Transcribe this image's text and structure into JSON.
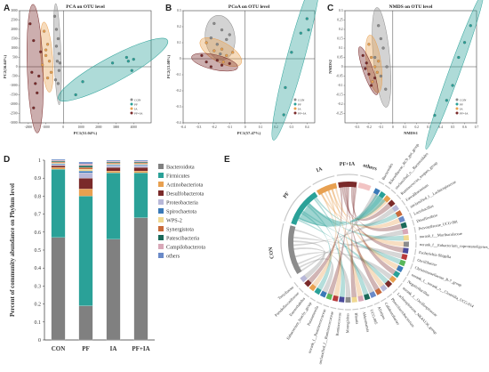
{
  "panels": {
    "a": {
      "letter": "A",
      "title": "PCA on OTU level",
      "xlabel": "PC1(51.04%)",
      "ylabel": "PC2(16.64%)"
    },
    "b": {
      "letter": "B",
      "title": "PCoA on OTU level",
      "xlabel": "PC1(57.47%)",
      "ylabel": "PC2(13.08%)"
    },
    "c": {
      "letter": "C",
      "title": "NMDS on OTU level",
      "xlabel": "NMDS1",
      "ylabel": "NMDS2"
    },
    "d": {
      "letter": "D",
      "ylabel": "Percent of community abundance on Phylum level"
    },
    "e": {
      "letter": "E"
    }
  },
  "colors": {
    "CON": "#8c8c8c",
    "PF": "#2aa198",
    "IA": "#e8a050",
    "PF+IA": "#7a2a2a"
  },
  "chart_data": [
    {
      "type": "scatter",
      "title": "PCA on OTU level",
      "xlabel": "PC1(51.04%)",
      "ylabel": "PC2(16.64%)",
      "xlim": [
        -2500,
        5000
      ],
      "ylim": [
        -3000,
        3000
      ],
      "xticks": [
        "-2000",
        "-1000",
        "0",
        "1000",
        "2000",
        "3000",
        "4000"
      ],
      "yticks": [
        "3000",
        "2500",
        "2000",
        "1500",
        "1000",
        "500",
        "0",
        "-500",
        "-1000",
        "-1500",
        "-2000",
        "-2500",
        "-3000"
      ],
      "legend": [
        "CON",
        "PF",
        "IA",
        "PF+IA"
      ],
      "series": [
        {
          "name": "CON",
          "points": [
            [
              -500,
              2700
            ],
            [
              -400,
              2000
            ],
            [
              -300,
              1500
            ],
            [
              -250,
              700
            ],
            [
              -350,
              300
            ],
            [
              -450,
              -700
            ],
            [
              -300,
              -900
            ],
            [
              -200,
              200
            ],
            [
              -400,
              1100
            ],
            [
              -250,
              -200
            ]
          ]
        },
        {
          "name": "PF",
          "points": [
            [
              2800,
              200
            ],
            [
              3600,
              500
            ],
            [
              3700,
              300
            ],
            [
              3900,
              -200
            ],
            [
              4000,
              400
            ],
            [
              1100,
              -800
            ],
            [
              700,
              -1500
            ]
          ]
        },
        {
          "name": "IA",
          "points": [
            [
              -1100,
              1900
            ],
            [
              -900,
              1200
            ],
            [
              -1000,
              600
            ],
            [
              -800,
              300
            ],
            [
              -1200,
              100
            ],
            [
              -700,
              -300
            ],
            [
              -900,
              -600
            ],
            [
              -1000,
              900
            ]
          ]
        },
        {
          "name": "PF+IA",
          "points": [
            [
              -1900,
              2300
            ],
            [
              -1700,
              1400
            ],
            [
              -1800,
              -300
            ],
            [
              -1600,
              -900
            ],
            [
              -1500,
              -1400
            ],
            [
              -1700,
              -2200
            ],
            [
              -1400,
              -500
            ],
            [
              -1300,
              800
            ]
          ]
        }
      ]
    },
    {
      "type": "scatter",
      "title": "PCoA on OTU level",
      "xlabel": "PC1(57.47%)",
      "ylabel": "PC2(13.08%)",
      "xlim": [
        -0.4,
        0.45
      ],
      "ylim": [
        -0.4,
        0.3
      ],
      "xticks": [
        "-0.4",
        "-0.3",
        "-0.2",
        "-0.1",
        "0",
        "0.1",
        "0.2",
        "0.3",
        "0.4"
      ],
      "yticks": [
        "0.3",
        "0.2",
        "0.1",
        "0",
        "-0.1",
        "-0.2",
        "-0.3",
        "-0.4"
      ],
      "legend": [
        "CON",
        "PF",
        "IA",
        "PF+IA"
      ],
      "series": [
        {
          "name": "CON",
          "points": [
            [
              -0.2,
              0.22
            ],
            [
              -0.15,
              0.18
            ],
            [
              -0.12,
              0.12
            ],
            [
              -0.18,
              0.09
            ],
            [
              -0.22,
              0.13
            ],
            [
              -0.1,
              0.15
            ],
            [
              -0.16,
              0.03
            ]
          ]
        },
        {
          "name": "PF",
          "points": [
            [
              0.4,
              0.25
            ],
            [
              0.41,
              0.18
            ],
            [
              0.36,
              0.16
            ],
            [
              0.3,
              0.04
            ],
            [
              0.26,
              -0.18
            ],
            [
              0.25,
              -0.35
            ]
          ]
        },
        {
          "name": "IA",
          "points": [
            [
              -0.25,
              0.1
            ],
            [
              -0.2,
              0.05
            ],
            [
              -0.15,
              0.06
            ],
            [
              -0.12,
              0.02
            ],
            [
              -0.08,
              0.04
            ],
            [
              -0.14,
              -0.02
            ]
          ]
        },
        {
          "name": "PF+IA",
          "points": [
            [
              -0.28,
              0.02
            ],
            [
              -0.25,
              -0.02
            ],
            [
              -0.22,
              -0.05
            ],
            [
              -0.18,
              -0.01
            ],
            [
              -0.15,
              -0.04
            ],
            [
              -0.1,
              -0.03
            ]
          ]
        }
      ]
    },
    {
      "type": "scatter",
      "title": "NMDS on OTU level",
      "xlabel": "NMDS1",
      "ylabel": "NMDS2",
      "xlim": [
        -0.4,
        0.7
      ],
      "ylim": [
        -0.3,
        0.3
      ],
      "xticks": [
        "-0.3",
        "-0.2",
        "-0.1",
        "0",
        "0.1",
        "0.2",
        "0.3",
        "0.4",
        "0.5",
        "0.6",
        "0.7"
      ],
      "yticks": [
        "0.3",
        "0.25",
        "0.2",
        "0.15",
        "0.1",
        "0.05",
        "0",
        "-0.05",
        "-0.1",
        "-0.15",
        "-0.2",
        "-0.25"
      ],
      "legend": [
        "CON",
        "PF",
        "IA",
        "PF+IA"
      ],
      "series": [
        {
          "name": "CON",
          "points": [
            [
              -0.12,
              0.22
            ],
            [
              -0.1,
              0.15
            ],
            [
              -0.08,
              0.1
            ],
            [
              -0.15,
              0.05
            ],
            [
              -0.05,
              0.0
            ],
            [
              -0.1,
              -0.05
            ],
            [
              -0.06,
              -0.12
            ]
          ]
        },
        {
          "name": "PF",
          "points": [
            [
              0.65,
              0.22
            ],
            [
              0.6,
              0.13
            ],
            [
              0.55,
              0.05
            ],
            [
              0.5,
              -0.1
            ],
            [
              0.45,
              -0.18
            ],
            [
              0.35,
              -0.26
            ]
          ]
        },
        {
          "name": "IA",
          "points": [
            [
              -0.2,
              0.12
            ],
            [
              -0.18,
              0.05
            ],
            [
              -0.15,
              0.0
            ],
            [
              -0.13,
              -0.03
            ],
            [
              -0.17,
              -0.08
            ],
            [
              -0.12,
              0.03
            ]
          ]
        },
        {
          "name": "PF+IA",
          "points": [
            [
              -0.25,
              0.06
            ],
            [
              -0.22,
              0.02
            ],
            [
              -0.2,
              -0.04
            ],
            [
              -0.18,
              -0.1
            ],
            [
              -0.15,
              -0.06
            ],
            [
              -0.23,
              -0.01
            ]
          ]
        }
      ]
    },
    {
      "type": "bar",
      "stacked": true,
      "ylabel": "Percent of community abundance on Phylum level",
      "ylim": [
        0,
        1
      ],
      "yticks": [
        "0",
        "0.1",
        "0.2",
        "0.3",
        "0.4",
        "0.5",
        "0.6",
        "0.7",
        "0.8",
        "0.9",
        "1"
      ],
      "categories": [
        "CON",
        "PF",
        "IA",
        "PF+IA"
      ],
      "series": [
        {
          "name": "Bacteroidota",
          "color": "#808080",
          "values": [
            0.57,
            0.19,
            0.56,
            0.68
          ]
        },
        {
          "name": "Firmicutes",
          "color": "#2aa198",
          "values": [
            0.38,
            0.61,
            0.37,
            0.25
          ]
        },
        {
          "name": "Actinobacteriota",
          "color": "#e8a050",
          "values": [
            0.01,
            0.04,
            0.01,
            0.01
          ]
        },
        {
          "name": "Desulfobacterota",
          "color": "#7a2a2a",
          "values": [
            0.01,
            0.06,
            0.02,
            0.02
          ]
        },
        {
          "name": "Proteobacteria",
          "color": "#b8b8d8",
          "values": [
            0.005,
            0.03,
            0.01,
            0.01
          ]
        },
        {
          "name": "Spirochaetota",
          "color": "#3a7ab8",
          "values": [
            0.005,
            0.01,
            0.005,
            0.005
          ]
        },
        {
          "name": "WPS-2",
          "color": "#f0d890",
          "values": [
            0.005,
            0.01,
            0.005,
            0.005
          ]
        },
        {
          "name": "Synergistota",
          "color": "#c86a3a",
          "values": [
            0.005,
            0.01,
            0.005,
            0.005
          ]
        },
        {
          "name": "Patescibacteria",
          "color": "#1a6a5a",
          "values": [
            0.005,
            0.01,
            0.005,
            0.005
          ]
        },
        {
          "name": "Campilobacterota",
          "color": "#d8a8b8",
          "values": [
            0.005,
            0.01,
            0.005,
            0.005
          ]
        },
        {
          "name": "others",
          "color": "#6a8ac8",
          "values": [
            0.005,
            0.01,
            0.005,
            0.005
          ]
        }
      ]
    },
    {
      "type": "chord",
      "groups": [
        "CON",
        "PF",
        "IA",
        "PF+IA",
        "others"
      ],
      "taxa": [
        "Bacteroides",
        "Rikenellaceae_RC9_gut_group",
        "unclassified_o__Bacteroidales",
        "Ruminococcus_torques_group",
        "Faecalibacterium",
        "unclassified_f__Lachnospiraceae",
        "Lactobacillus",
        "Desulfovibrio",
        "Prevotellaceae_UCG-001",
        "norank_f__Muribaculaceae",
        "norank_f__Eubacterium_coprostanoligenes_group",
        "Escherichia-Shigella",
        "Oscillibacter",
        "Christensenellaceae_R-7_group",
        "norank_f__norank_o__Clostridia_UCG-014",
        "Negativibacillus",
        "norank_f__Oscillospiraceae",
        "Lachnospiraceae_NK4A136_group",
        "Phascolarctobacterium",
        "Colidextribacter",
        "Alistipes",
        "UCG-005",
        "Akkermansia",
        "Blautia",
        "Monoglobus",
        "Ruminococcus",
        "unclassified_f__Ruminococcaceae",
        "norank_f__Ruminococcaceae",
        "Parasutterella",
        "Eubacterium_brachy_group",
        "Enterorhabdus",
        "Pseudoflavonifractor",
        "Turicibacter"
      ]
    }
  ]
}
